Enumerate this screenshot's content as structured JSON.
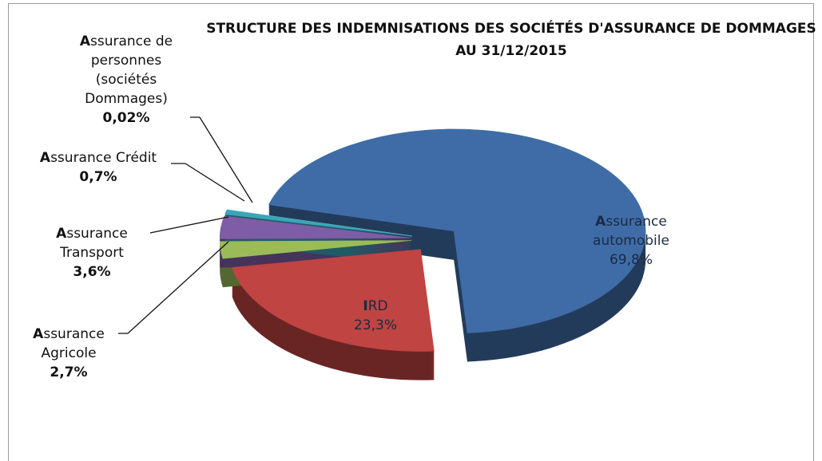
{
  "chart_data": {
    "type": "pie",
    "title": "STRUCTURE DES INDEMNISATIONS DES SOCIÉTÉS D'ASSURANCE DE DOMMAGES AU 31/12/2015",
    "categories": [
      "Assurance automobile",
      "IRD",
      "Assurance Agricole",
      "Assurance Transport",
      "Assurance Crédit",
      "Assurance de personnes (sociétés Dommages)"
    ],
    "values": [
      69.8,
      23.3,
      2.7,
      3.6,
      0.7,
      0.02
    ],
    "value_labels": [
      "69,8%",
      "23,3%",
      "2,7%",
      "3,6%",
      "0,7%",
      "0,02%"
    ],
    "colors": [
      "#3f6ca6",
      "#bf4442",
      "#9bbb59",
      "#7e5ca6",
      "#3aa5b8",
      "#5fb4c2"
    ]
  }
}
